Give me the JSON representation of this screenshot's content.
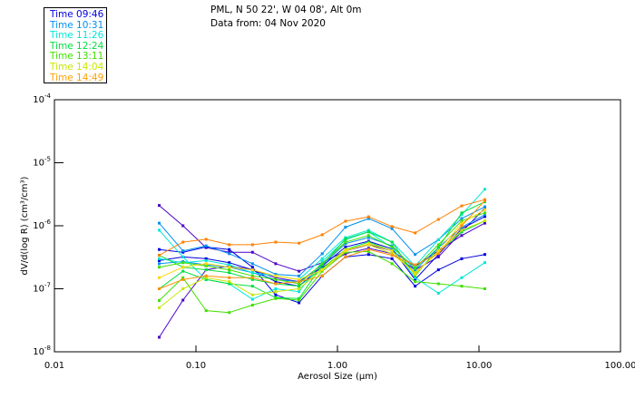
{
  "header": {
    "location": "PML, N 50 22', W 04 08', Alt 0m",
    "date": "Data from: 04 Nov 2020"
  },
  "legend": [
    {
      "label": "Time 09:46",
      "color": "#0000e0"
    },
    {
      "label": "Time 10:31",
      "color": "#0090f0"
    },
    {
      "label": "Time 11:26",
      "color": "#00e8d8"
    },
    {
      "label": "Time 12:24",
      "color": "#00e040"
    },
    {
      "label": "Time 13:11",
      "color": "#40e000"
    },
    {
      "label": "Time 14:04",
      "color": "#c8e800"
    },
    {
      "label": "Time 14:49",
      "color": "#ffa000"
    }
  ],
  "chart_data": {
    "type": "line",
    "xscale": "log",
    "yscale": "log",
    "xlabel": "Aerosol Size (µm)",
    "ylabel": "dV/d(log R) (cm³/cm³)",
    "xlim": [
      0.01,
      100
    ],
    "ylim": [
      1e-08,
      0.0001
    ],
    "xticks": [
      {
        "v": 0.01,
        "label": "0.01"
      },
      {
        "v": 0.1,
        "label": "0.10"
      },
      {
        "v": 1,
        "label": "1.00"
      },
      {
        "v": 10,
        "label": "10.00"
      },
      {
        "v": 100,
        "label": "100.00"
      }
    ],
    "yticks": [
      {
        "v": 0.0001,
        "base": "10",
        "exp": "-4"
      },
      {
        "v": 1e-05,
        "base": "10",
        "exp": "-5"
      },
      {
        "v": 1e-06,
        "base": "10",
        "exp": "-6"
      },
      {
        "v": 1e-07,
        "base": "10",
        "exp": "-7"
      },
      {
        "v": 1e-08,
        "base": "10",
        "exp": "-8"
      }
    ],
    "x": [
      0.055,
      0.081,
      0.118,
      0.172,
      0.251,
      0.366,
      0.535,
      0.78,
      1.14,
      1.66,
      2.43,
      3.54,
      5.17,
      7.55,
      11.0
    ],
    "series": [
      {
        "color": "#4b00c8",
        "values": [
          2.1e-06,
          1e-06,
          4.5e-07,
          3.8e-07,
          3.8e-07,
          2.5e-07,
          1.9e-07,
          2.6e-07,
          4e-07,
          5e-07,
          4e-07,
          2.3e-07,
          4e-07,
          7e-07,
          1.1e-06
        ]
      },
      {
        "color": "#4b00c8",
        "values": [
          1.7e-08,
          6.6e-08,
          2e-07,
          2.3e-07,
          2e-07,
          1.5e-07,
          1.3e-07,
          2.2e-07,
          3.6e-07,
          4.4e-07,
          3.6e-07,
          2e-07,
          3.2e-07,
          8e-07,
          1.9e-06
        ]
      },
      {
        "color": "#0000e0",
        "values": [
          4.2e-07,
          3.8e-07,
          4.6e-07,
          4.2e-07,
          2.2e-07,
          8e-08,
          6e-08,
          1.6e-07,
          3.2e-07,
          3.5e-07,
          3e-07,
          1.1e-07,
          2e-07,
          3e-07,
          3.5e-07
        ]
      },
      {
        "color": "#0000e0",
        "values": [
          2.8e-07,
          3.2e-07,
          3e-07,
          2.6e-07,
          2e-07,
          1.3e-07,
          1.1e-07,
          2.3e-07,
          4.6e-07,
          5.7e-07,
          4.3e-07,
          1.4e-07,
          3.5e-07,
          9e-07,
          1.4e-06
        ]
      },
      {
        "color": "#0090f0",
        "values": [
          1.1e-06,
          4e-07,
          4.8e-07,
          3.6e-07,
          2.5e-07,
          1.7e-07,
          1.6e-07,
          3.6e-07,
          9.5e-07,
          1.3e-06,
          9e-07,
          3.5e-07,
          6e-07,
          1.3e-06,
          2e-06
        ]
      },
      {
        "color": "#0090f0",
        "values": [
          2.5e-07,
          2.7e-07,
          2.4e-07,
          2.2e-07,
          1.8e-07,
          1.4e-07,
          1.3e-07,
          2.4e-07,
          5.2e-07,
          6.5e-07,
          4.8e-07,
          2e-07,
          4.5e-07,
          9.5e-07,
          1.5e-06
        ]
      },
      {
        "color": "#00e8d8",
        "values": [
          8.5e-07,
          3.2e-07,
          1.4e-07,
          1.2e-07,
          6.8e-08,
          1e-07,
          9e-08,
          2.7e-07,
          6e-07,
          8e-07,
          4.5e-07,
          1.5e-07,
          8.5e-08,
          1.5e-07,
          2.6e-07
        ]
      },
      {
        "color": "#00e8d8",
        "values": [
          3e-07,
          2.6e-07,
          2.8e-07,
          2.4e-07,
          1.8e-07,
          1.6e-07,
          1.4e-07,
          3e-07,
          6.5e-07,
          8.5e-07,
          5.5e-07,
          2.3e-07,
          6e-07,
          1.5e-06,
          3.8e-06
        ]
      },
      {
        "color": "#00e040",
        "values": [
          1e-07,
          1.9e-07,
          1.4e-07,
          1.2e-07,
          1.1e-07,
          7.2e-08,
          7e-08,
          2.4e-07,
          6.2e-07,
          8e-07,
          5.5e-07,
          1.6e-07,
          4.5e-07,
          1.6e-06,
          2.4e-06
        ]
      },
      {
        "color": "#00e040",
        "values": [
          3.4e-07,
          2.2e-07,
          2e-07,
          1.8e-07,
          1.4e-07,
          1.2e-07,
          1.1e-07,
          2.1e-07,
          4.2e-07,
          5.5e-07,
          4e-07,
          1.8e-07,
          3.8e-07,
          8e-07,
          1.2e-06
        ]
      },
      {
        "color": "#40e000",
        "values": [
          6.5e-08,
          1.5e-07,
          4.5e-08,
          4.2e-08,
          5.5e-08,
          7e-08,
          6.6e-08,
          1.9e-07,
          3.8e-07,
          3.9e-07,
          2.5e-07,
          1.3e-07,
          1.2e-07,
          1.1e-07,
          1e-07
        ]
      },
      {
        "color": "#40e000",
        "values": [
          2.2e-07,
          2.6e-07,
          2.3e-07,
          2e-07,
          1.6e-07,
          1.4e-07,
          1.2e-07,
          2.5e-07,
          5.5e-07,
          7e-07,
          4.6e-07,
          2.1e-07,
          5e-07,
          1.2e-06,
          1.6e-06
        ]
      },
      {
        "color": "#c8e800",
        "values": [
          5e-08,
          1e-07,
          1.5e-07,
          1.3e-07,
          8e-08,
          9e-08,
          1e-07,
          2e-07,
          4.2e-07,
          5e-07,
          3.6e-07,
          1.8e-07,
          3.8e-07,
          8.5e-07,
          1.2e-06
        ]
      },
      {
        "color": "#ffd800",
        "values": [
          1.5e-07,
          2.2e-07,
          2.5e-07,
          2.2e-07,
          2e-07,
          1.6e-07,
          1.4e-07,
          2e-07,
          4e-07,
          5.2e-07,
          4e-07,
          1.7e-07,
          4e-07,
          1.1e-06,
          1.8e-06
        ]
      },
      {
        "color": "#ff9000",
        "values": [
          1e-07,
          1.4e-07,
          1.6e-07,
          1.5e-07,
          1.5e-07,
          1.2e-07,
          1.3e-07,
          1.6e-07,
          3.2e-07,
          4.2e-07,
          3.4e-07,
          2.4e-07,
          3.6e-07,
          1e-06,
          2.5e-06
        ]
      },
      {
        "color": "#ff8000",
        "values": [
          3.4e-07,
          5.5e-07,
          6.1e-07,
          5e-07,
          5e-07,
          5.5e-07,
          5.3e-07,
          7.2e-07,
          1.18e-06,
          1.39e-06,
          9.7e-07,
          7.7e-07,
          1.26e-06,
          2.07e-06,
          2.6e-06
        ]
      }
    ]
  }
}
